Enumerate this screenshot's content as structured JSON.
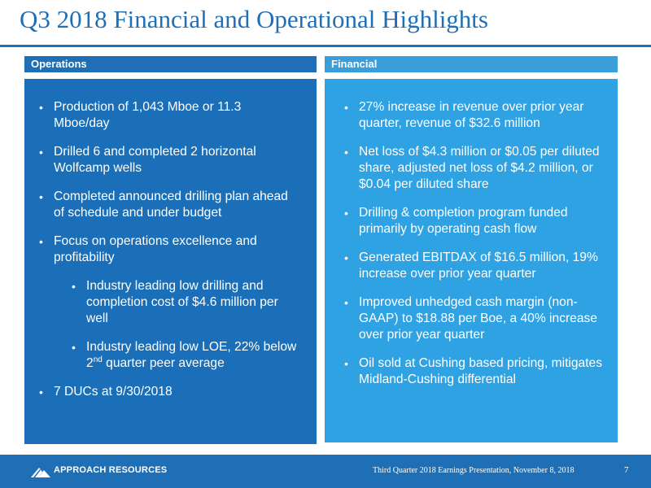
{
  "title": "Q3 2018 Financial and Operational Highlights",
  "colors": {
    "primary": "#1f6fb6",
    "ops_panel": "#1a6fb8",
    "fin_panel": "#2fa2e3",
    "fin_header": "#3a9edb"
  },
  "operations": {
    "header": "Operations",
    "bullets": [
      "Production of 1,043 Mboe or 11.3 Mboe/day",
      "Drilled 6 and completed 2 horizontal Wolfcamp wells",
      "Completed announced drilling plan ahead of schedule and under budget",
      "Focus on operations excellence and profitability",
      "Industry leading low drilling and completion cost of $4.6 million per well",
      "Industry leading low LOE, 22% below 2",
      "nd",
      " quarter peer average",
      "7 DUCs at 9/30/2018"
    ]
  },
  "financial": {
    "header": "Financial",
    "bullets": [
      "27% increase in revenue over prior year quarter, revenue of $32.6 million",
      "Net loss of $4.3 million or $0.05 per diluted share, adjusted net loss of $4.2 million, or $0.04 per diluted share",
      "Drilling & completion program funded primarily by operating cash flow",
      "Generated EBITDAX of  $16.5 million, 19% increase over prior year quarter",
      "Improved unhedged cash margin (non-GAAP) to $18.88 per Boe, a 40% increase over prior year quarter",
      "Oil sold at Cushing based pricing, mitigates Midland-Cushing differential"
    ]
  },
  "footer": {
    "company": "APPROACH RESOURCES",
    "logo_icon": "approach-logo-icon",
    "caption": "Third  Quarter 2018 Earnings Presentation, November 8, 2018",
    "page": "7"
  },
  "bullet_glyph": "•"
}
